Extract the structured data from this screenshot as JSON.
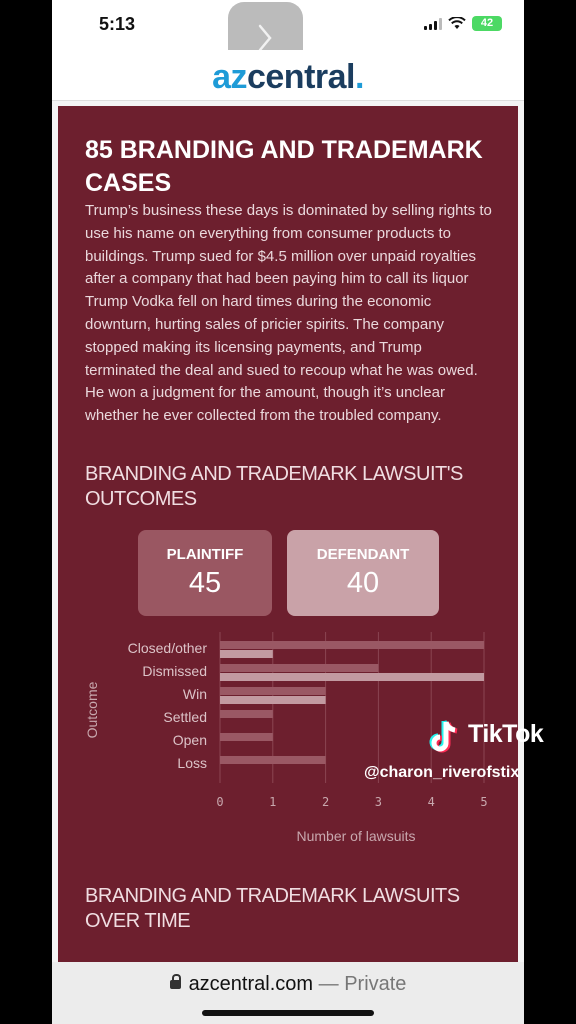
{
  "status": {
    "time": "5:13",
    "battery": "42"
  },
  "site": {
    "logo_az": "az",
    "logo_central": "central",
    "logo_dot": "."
  },
  "article": {
    "headline": "85 BRANDING AND TRADEMARK CASES",
    "body": "Trump’s business these days is dominated by selling rights to use his name on everything from consumer products to buildings. Trump sued for $4.5 million over unpaid royalties after a company that had been paying him to call its liquor Trump Vodka fell on hard times during the economic downturn, hurting sales of pricier spirits. The company stopped making its licensing payments, and Trump terminated the deal and sued to recoup what he was owed. He won a judgment for the amount, though it’s unclear whether he ever collected from the troubled company.",
    "section1": "BRANDING AND TRADEMARK LAWSUIT'S OUTCOMES",
    "section2": "BRANDING AND TRADEMARK LAWSUITS OVER TIME",
    "stats": [
      {
        "label": "PLAINTIFF",
        "value": "45"
      },
      {
        "label": "DEFENDANT",
        "value": "40"
      }
    ]
  },
  "chart_data": {
    "type": "bar",
    "orientation": "horizontal",
    "categories": [
      "Closed/other",
      "Dismissed",
      "Win",
      "Settled",
      "Open",
      "Loss"
    ],
    "series": [
      {
        "values": [
          5,
          3,
          2,
          1,
          1,
          2
        ]
      },
      {
        "values": [
          1,
          5,
          2,
          0,
          0,
          0
        ]
      }
    ],
    "xlabel": "Number of lawsuits",
    "ylabel": "Outcome",
    "xlim": [
      0,
      5
    ],
    "xticks": [
      0,
      1,
      2,
      3,
      4,
      5
    ],
    "grid": true,
    "colors": [
      "#9a5864",
      "#c29aa1"
    ]
  },
  "watermark": {
    "brand": "TikTok",
    "user": "@charon_riverofstix"
  },
  "browser": {
    "domain": "azcentral.com",
    "separator": " — ",
    "mode": "Private"
  },
  "colors": {
    "article_bg": "#6d1f2e",
    "stat_plaintiff": "#9a5762",
    "stat_defendant": "#c9a2a8",
    "logo_blue": "#1e9bd7",
    "logo_navy": "#1b3d5f"
  }
}
